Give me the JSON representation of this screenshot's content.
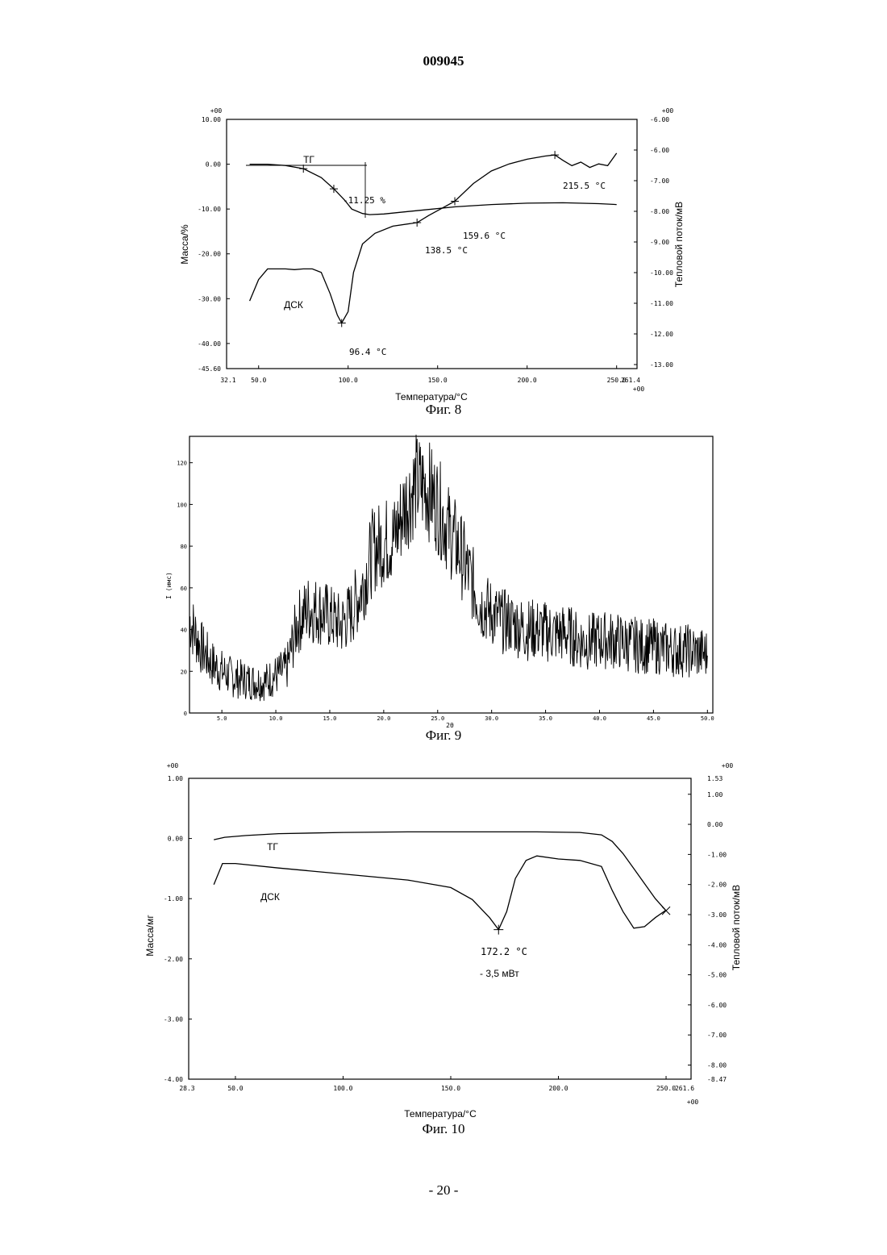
{
  "document": {
    "header": "009045",
    "page_number": "- 20 -"
  },
  "chart_data": [
    {
      "type": "line",
      "caption": "Фиг. 8",
      "xlabel": "Температура/°C",
      "ylabel_left": "Масса/%",
      "ylabel_right": "Тепловой поток/мВ",
      "xlim": [
        32.1,
        261.4
      ],
      "ylim_left": [
        -45.6,
        10.0
      ],
      "ylim_right": [
        -13.0,
        -6.0
      ],
      "x_ticks": [
        "50.0",
        "100.0",
        "150.0",
        "200.0",
        "250.0"
      ],
      "x_edge_labels": [
        "32.1",
        "261.4"
      ],
      "left_ticks": [
        "10.00",
        "0.00",
        "-10.00",
        "-20.00",
        "-30.00",
        "-40.00",
        "-45.60"
      ],
      "right_ticks": [
        "-6.00",
        "-6.00",
        "-7.00",
        "-8.00",
        "-9.00",
        "-10.00",
        "-11.00",
        "-12.00",
        "-13.00"
      ],
      "exponent_label": "+00",
      "series": [
        {
          "name": "ТГ",
          "axis": "left",
          "x": [
            45,
            55,
            65,
            75,
            85,
            92,
            98,
            102,
            108,
            112,
            120,
            140,
            160,
            180,
            200,
            220,
            240,
            250
          ],
          "values": [
            0.0,
            0.0,
            -0.3,
            -1.0,
            -3.0,
            -5.5,
            -8.0,
            -10.0,
            -11.0,
            -11.25,
            -11.1,
            -10.3,
            -9.5,
            -9.0,
            -8.7,
            -8.6,
            -8.8,
            -9.0
          ]
        },
        {
          "name": "ДСК",
          "axis": "right",
          "x": [
            45,
            50,
            55,
            60,
            65,
            70,
            75,
            80,
            85,
            90,
            94,
            96.4,
            100,
            103,
            108,
            115,
            125,
            138.5,
            145,
            159.6,
            170,
            180,
            190,
            200,
            210,
            215.5,
            220,
            225,
            230,
            235,
            240,
            245,
            250
          ],
          "values": [
            -11.1,
            -10.5,
            -10.2,
            -10.2,
            -10.2,
            -10.22,
            -10.2,
            -10.2,
            -10.3,
            -10.9,
            -11.5,
            -11.72,
            -11.4,
            -10.3,
            -9.5,
            -9.2,
            -9.0,
            -8.9,
            -8.7,
            -8.3,
            -7.8,
            -7.45,
            -7.25,
            -7.12,
            -7.03,
            -7.0,
            -7.15,
            -7.3,
            -7.2,
            -7.35,
            -7.25,
            -7.3,
            -6.95
          ]
        }
      ],
      "annotations": [
        "ТГ",
        "ДСК",
        "-11.25 %",
        "96.4 °C",
        "138.5 °C",
        "159.6 °C",
        "215.5 °C"
      ]
    },
    {
      "type": "line",
      "caption": "Фиг. 9",
      "ylabel": "I (имс)",
      "xlabel": "2θ",
      "xlim": [
        2.0,
        50.5
      ],
      "ylim": [
        0,
        128
      ],
      "x_ticks": [
        "5.0",
        "10.0",
        "15.0",
        "20.0",
        "25.0",
        "30.0",
        "35.0",
        "40.0",
        "45.0",
        "50.0"
      ],
      "y_ticks": [
        "0",
        "20",
        "40",
        "60",
        "80",
        "100",
        "120"
      ],
      "series": [
        {
          "name": "",
          "x": [
            2,
            3,
            4,
            5,
            6,
            7,
            8,
            9,
            10,
            11,
            12,
            13,
            14,
            15,
            16,
            17,
            18,
            19,
            20,
            21,
            22,
            23,
            24,
            25,
            26,
            27,
            28,
            29,
            30,
            31,
            32,
            33,
            34,
            35,
            36,
            37,
            38,
            39,
            40,
            41,
            42,
            43,
            44,
            45,
            46,
            47,
            48,
            49,
            50
          ],
          "values": [
            45,
            32,
            24,
            20,
            17,
            16,
            15,
            15,
            18,
            21,
            43,
            50,
            49,
            46,
            42,
            48,
            60,
            78,
            82,
            84,
            100,
            110,
            108,
            100,
            88,
            78,
            65,
            52,
            48,
            44,
            43,
            40,
            40,
            39,
            38,
            38,
            35,
            34,
            35,
            35,
            34,
            33,
            32,
            32,
            31,
            30,
            30,
            29,
            28
          ]
        }
      ]
    },
    {
      "type": "line",
      "caption": "Фиг. 10",
      "xlabel": "Температура/°C",
      "ylabel_left": "Масса/мг",
      "ylabel_right": "Тепловой поток/мВ",
      "xlim": [
        28.3,
        261.6
      ],
      "ylim_left": [
        -4.0,
        1.0
      ],
      "ylim_right": [
        -8.47,
        1.53
      ],
      "x_ticks": [
        "50.0",
        "100.0",
        "150.0",
        "200.0",
        "250.0"
      ],
      "x_edge_labels": [
        "28.3",
        "261.6"
      ],
      "left_ticks": [
        "1.00",
        "0.00",
        "-1.00",
        "-2.00",
        "-3.00",
        "-4.00"
      ],
      "right_ticks": [
        "1.53",
        "1.00",
        "0.00",
        "-1.00",
        "-2.00",
        "-3.00",
        "-4.00",
        "-5.00",
        "-6.00",
        "-7.00",
        "-8.00",
        "-8.47"
      ],
      "exponent_label": "+00",
      "series": [
        {
          "name": "ТГ",
          "axis": "left",
          "x": [
            40,
            45,
            55,
            70,
            100,
            130,
            160,
            190,
            210,
            220,
            225,
            230,
            235,
            240,
            245,
            250
          ],
          "values": [
            -0.02,
            0.02,
            0.05,
            0.08,
            0.1,
            0.11,
            0.11,
            0.11,
            0.1,
            0.06,
            -0.05,
            -0.25,
            -0.5,
            -0.75,
            -1.0,
            -1.2
          ]
        },
        {
          "name": "ДСК",
          "axis": "right",
          "x": [
            40,
            44,
            50,
            70,
            100,
            130,
            150,
            160,
            168,
            172.2,
            176,
            180,
            185,
            190,
            200,
            210,
            220,
            225,
            230,
            235,
            240,
            245,
            250
          ],
          "values": [
            -2.0,
            -1.3,
            -1.3,
            -1.45,
            -1.65,
            -1.85,
            -2.1,
            -2.5,
            -3.1,
            -3.5,
            -2.9,
            -1.8,
            -1.2,
            -1.05,
            -1.15,
            -1.2,
            -1.4,
            -2.2,
            -2.9,
            -3.45,
            -3.4,
            -3.1,
            -2.85
          ]
        }
      ],
      "annotations": [
        "ТГ",
        "ДСК",
        "172.2 °C",
        "- 3,5 мВт"
      ]
    }
  ]
}
